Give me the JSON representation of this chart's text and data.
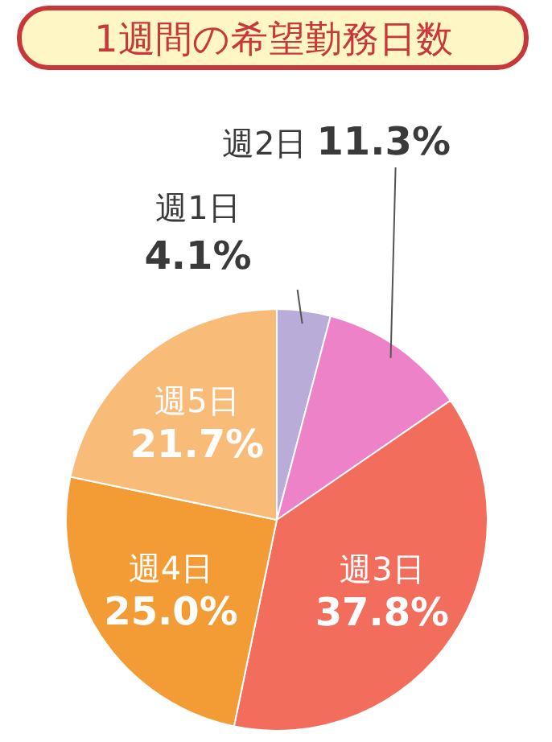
{
  "chart_data": {
    "type": "pie",
    "title": "1週間の希望勤務日数",
    "categories": [
      "週1日",
      "週2日",
      "週3日",
      "週4日",
      "週5日"
    ],
    "values": [
      4.1,
      11.3,
      37.8,
      25.0,
      21.7
    ],
    "value_labels": [
      "4.1%",
      "11.3%",
      "37.8%",
      "25.0%",
      "21.7%"
    ],
    "colors": [
      "#b9acd9",
      "#ee82c9",
      "#f26d5b",
      "#f39c35",
      "#f8bb78"
    ]
  }
}
